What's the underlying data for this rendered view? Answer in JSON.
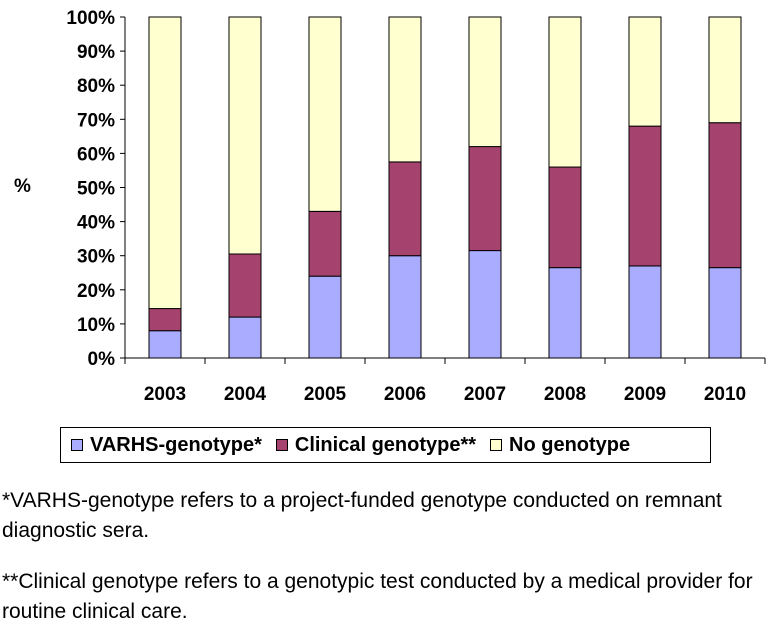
{
  "chart_data": {
    "type": "bar",
    "stacked": true,
    "categories": [
      "2003",
      "2004",
      "2005",
      "2006",
      "2007",
      "2008",
      "2009",
      "2010"
    ],
    "series": [
      {
        "name": "VARHS-genotype*",
        "color": "#a9acff",
        "values": [
          8,
          12,
          24,
          30,
          31.5,
          26.5,
          27,
          26.5
        ]
      },
      {
        "name": "Clinical genotype**",
        "color": "#a6426e",
        "values": [
          6.5,
          18.5,
          19,
          27.5,
          30.5,
          29.5,
          41,
          42.5
        ]
      },
      {
        "name": "No genotype",
        "color": "#ffffd0",
        "values": [
          85.5,
          69.5,
          57,
          42.5,
          38,
          44,
          32,
          31
        ]
      }
    ],
    "ylabel": "%",
    "ylim": [
      0,
      100
    ],
    "yticks": [
      "0%",
      "10%",
      "20%",
      "30%",
      "40%",
      "50%",
      "60%",
      "70%",
      "80%",
      "90%",
      "100%"
    ],
    "legend": "bottom",
    "grid": false
  },
  "notes": {
    "varhs": "*VARHS-genotype refers to a project-funded genotype conducted on remnant diagnostic sera.",
    "clinical": "**Clinical genotype refers to a genotypic test conducted by a medical provider for routine clinical care."
  }
}
